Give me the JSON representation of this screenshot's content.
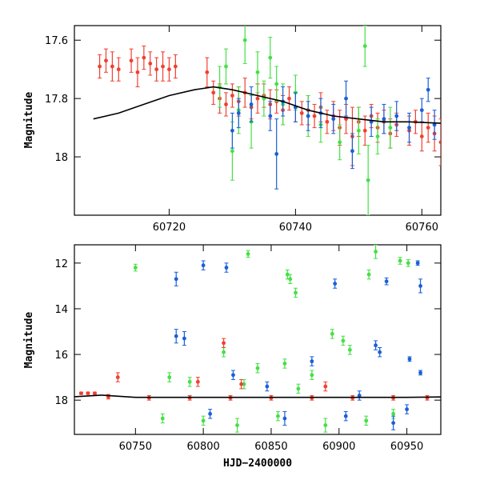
{
  "colors": {
    "red": "#f04030",
    "green": "#44e044",
    "blue": "#1a5fd8",
    "curve": "#000000"
  },
  "chart_data": [
    {
      "id": "top",
      "type": "scatter",
      "title": "",
      "xlabel": "",
      "ylabel": "Magnitude",
      "xlim": [
        60705,
        60763
      ],
      "ylim": [
        18.2,
        17.55
      ],
      "y_inverted": true,
      "x_ticks": [
        60720,
        60740,
        60760
      ],
      "x_tick_labels": [
        "60720",
        "60740",
        "60760"
      ],
      "y_ticks": [
        17.6,
        17.8,
        18
      ],
      "y_tick_labels": [
        "17.6",
        "17.8",
        "18"
      ],
      "model_curve": {
        "name": "model",
        "x": [
          60708,
          60712,
          60716,
          60720,
          60724,
          60727,
          60730,
          60734,
          60738,
          60742,
          60746,
          60750,
          60754,
          60758,
          60763
        ],
        "y": [
          17.87,
          17.85,
          17.82,
          17.79,
          17.77,
          17.76,
          17.77,
          17.79,
          17.81,
          17.84,
          17.86,
          17.87,
          17.88,
          17.88,
          17.885
        ]
      },
      "series": [
        {
          "name": "red",
          "points": [
            [
              60709,
              17.69,
              0.04
            ],
            [
              60710,
              17.67,
              0.04
            ],
            [
              60711,
              17.69,
              0.05
            ],
            [
              60712,
              17.7,
              0.04
            ],
            [
              60714,
              17.67,
              0.04
            ],
            [
              60715,
              17.71,
              0.05
            ],
            [
              60716,
              17.66,
              0.04
            ],
            [
              60717,
              17.68,
              0.04
            ],
            [
              60718,
              17.7,
              0.04
            ],
            [
              60719,
              17.69,
              0.05
            ],
            [
              60720,
              17.7,
              0.04
            ],
            [
              60721,
              17.69,
              0.04
            ],
            [
              60726,
              17.71,
              0.05
            ],
            [
              60727,
              17.78,
              0.04
            ],
            [
              60728,
              17.8,
              0.05
            ],
            [
              60729,
              17.82,
              0.04
            ],
            [
              60730,
              17.79,
              0.04
            ],
            [
              60731,
              17.81,
              0.05
            ],
            [
              60732,
              17.78,
              0.05
            ],
            [
              60733,
              17.83,
              0.04
            ],
            [
              60734,
              17.8,
              0.05
            ],
            [
              60735,
              17.79,
              0.04
            ],
            [
              60736,
              17.82,
              0.05
            ],
            [
              60737,
              17.81,
              0.04
            ],
            [
              60738,
              17.84,
              0.05
            ],
            [
              60739,
              17.8,
              0.04
            ],
            [
              60740,
              17.83,
              0.05
            ],
            [
              60741,
              17.85,
              0.04
            ],
            [
              60742,
              17.84,
              0.05
            ],
            [
              60743,
              17.86,
              0.04
            ],
            [
              60744,
              17.83,
              0.05
            ],
            [
              60745,
              17.88,
              0.04
            ],
            [
              60746,
              17.86,
              0.05
            ],
            [
              60747,
              17.9,
              0.06
            ],
            [
              60748,
              17.87,
              0.05
            ],
            [
              60749,
              17.93,
              0.1
            ],
            [
              60750,
              17.88,
              0.05
            ],
            [
              60751,
              17.91,
              0.05
            ],
            [
              60752,
              17.86,
              0.04
            ],
            [
              60753,
              17.9,
              0.05
            ],
            [
              60754,
              17.88,
              0.04
            ],
            [
              60755,
              17.92,
              0.05
            ],
            [
              60756,
              17.89,
              0.04
            ],
            [
              60758,
              17.91,
              0.05
            ],
            [
              60759,
              17.88,
              0.04
            ],
            [
              60760,
              17.93,
              0.05
            ],
            [
              60761,
              17.9,
              0.05
            ],
            [
              60762,
              17.92,
              0.06
            ],
            [
              60763,
              17.95,
              0.08
            ]
          ]
        },
        {
          "name": "green",
          "points": [
            [
              60728,
              17.76,
              0.07
            ],
            [
              60729,
              17.69,
              0.06
            ],
            [
              60730,
              17.98,
              0.1
            ],
            [
              60731,
              17.84,
              0.08
            ],
            [
              60732,
              17.6,
              0.08
            ],
            [
              60733,
              17.88,
              0.09
            ],
            [
              60734,
              17.71,
              0.07
            ],
            [
              60735,
              17.8,
              0.06
            ],
            [
              60736,
              17.66,
              0.07
            ],
            [
              60737,
              17.75,
              0.06
            ],
            [
              60738,
              17.82,
              0.07
            ],
            [
              60740,
              17.78,
              0.06
            ],
            [
              60742,
              17.86,
              0.07
            ],
            [
              60744,
              17.89,
              0.06
            ],
            [
              60747,
              17.95,
              0.06
            ],
            [
              60750,
              17.91,
              0.08
            ],
            [
              60751,
              17.62,
              0.07
            ],
            [
              60751.5,
              18.08,
              0.12
            ],
            [
              60753,
              17.93,
              0.06
            ],
            [
              60755,
              17.9,
              0.07
            ]
          ]
        },
        {
          "name": "blue",
          "points": [
            [
              60730,
              17.91,
              0.06
            ],
            [
              60731,
              17.85,
              0.05
            ],
            [
              60733,
              17.82,
              0.06
            ],
            [
              60736,
              17.86,
              0.05
            ],
            [
              60737,
              17.99,
              0.12
            ],
            [
              60738,
              17.81,
              0.05
            ],
            [
              60740,
              17.83,
              0.05
            ],
            [
              60742,
              17.86,
              0.05
            ],
            [
              60744,
              17.85,
              0.05
            ],
            [
              60746,
              17.87,
              0.05
            ],
            [
              60748,
              17.8,
              0.06
            ],
            [
              60749,
              17.98,
              0.06
            ],
            [
              60752,
              17.88,
              0.05
            ],
            [
              60754,
              17.87,
              0.05
            ],
            [
              60756,
              17.86,
              0.05
            ],
            [
              60758,
              17.9,
              0.05
            ],
            [
              60760,
              17.84,
              0.04
            ],
            [
              60761,
              17.77,
              0.04
            ],
            [
              60762,
              17.89,
              0.05
            ]
          ]
        }
      ]
    },
    {
      "id": "bottom",
      "type": "scatter",
      "title": "",
      "xlabel": "HJD−2400000",
      "ylabel": "Magnitude",
      "xlim": [
        60705,
        60975
      ],
      "ylim": [
        19.5,
        11.2
      ],
      "y_inverted": true,
      "x_ticks": [
        60750,
        60800,
        60850,
        60900,
        60950
      ],
      "x_tick_labels": [
        "60750",
        "60800",
        "60850",
        "60900",
        "60950"
      ],
      "y_ticks": [
        12,
        14,
        16,
        18
      ],
      "y_tick_labels": [
        "12",
        "14",
        "16",
        "18"
      ],
      "model_curve": {
        "name": "model",
        "x": [
          60705,
          60725,
          60750,
          60800,
          60850,
          60900,
          60950,
          60975
        ],
        "y": [
          17.85,
          17.78,
          17.88,
          17.88,
          17.88,
          17.88,
          17.88,
          17.86
        ]
      },
      "series": [
        {
          "name": "green",
          "points": [
            [
              60750,
              12.2,
              0.15
            ],
            [
              60833,
              11.6,
              0.15
            ],
            [
              60862,
              12.5,
              0.2
            ],
            [
              60864,
              12.7,
              0.2
            ],
            [
              60868,
              13.3,
              0.2
            ],
            [
              60927,
              11.5,
              0.3
            ],
            [
              60922,
              12.5,
              0.2
            ],
            [
              60945,
              11.9,
              0.15
            ],
            [
              60951,
              12.0,
              0.15
            ],
            [
              60895,
              15.1,
              0.2
            ],
            [
              60903,
              15.4,
              0.2
            ],
            [
              60908,
              15.8,
              0.2
            ],
            [
              60815,
              15.9,
              0.2
            ],
            [
              60840,
              16.6,
              0.2
            ],
            [
              60860,
              16.4,
              0.2
            ],
            [
              60880,
              16.9,
              0.2
            ],
            [
              60775,
              17.0,
              0.2
            ],
            [
              60790,
              17.2,
              0.2
            ],
            [
              60830,
              17.3,
              0.2
            ],
            [
              60870,
              17.5,
              0.2
            ],
            [
              60770,
              18.8,
              0.2
            ],
            [
              60800,
              18.9,
              0.2
            ],
            [
              60825,
              19.1,
              0.3
            ],
            [
              60855,
              18.7,
              0.2
            ],
            [
              60890,
              19.1,
              0.3
            ],
            [
              60920,
              18.9,
              0.2
            ],
            [
              60940,
              18.6,
              0.2
            ]
          ]
        },
        {
          "name": "blue",
          "points": [
            [
              60780,
              12.7,
              0.3
            ],
            [
              60800,
              12.1,
              0.2
            ],
            [
              60817,
              12.2,
              0.2
            ],
            [
              60897,
              12.9,
              0.2
            ],
            [
              60935,
              12.8,
              0.15
            ],
            [
              60958,
              12.0,
              0.1
            ],
            [
              60960,
              13.0,
              0.3
            ],
            [
              60780,
              15.2,
              0.3
            ],
            [
              60786,
              15.3,
              0.3
            ],
            [
              60927,
              15.6,
              0.2
            ],
            [
              60930,
              15.9,
              0.2
            ],
            [
              60952,
              16.2,
              0.1
            ],
            [
              60960,
              16.8,
              0.1
            ],
            [
              60822,
              16.9,
              0.2
            ],
            [
              60847,
              17.4,
              0.2
            ],
            [
              60880,
              16.3,
              0.2
            ],
            [
              60915,
              17.8,
              0.2
            ],
            [
              60950,
              18.4,
              0.2
            ],
            [
              60805,
              18.6,
              0.2
            ],
            [
              60860,
              18.8,
              0.3
            ],
            [
              60905,
              18.7,
              0.2
            ],
            [
              60940,
              19.0,
              0.3
            ]
          ]
        },
        {
          "name": "red",
          "points": [
            [
              60710,
              17.7,
              0.05
            ],
            [
              60715,
              17.7,
              0.05
            ],
            [
              60720,
              17.7,
              0.05
            ],
            [
              60737,
              17.0,
              0.2
            ],
            [
              60815,
              15.5,
              0.2
            ],
            [
              60796,
              17.2,
              0.2
            ],
            [
              60828,
              17.3,
              0.2
            ],
            [
              60890,
              17.4,
              0.2
            ],
            [
              60730,
              17.85,
              0.1
            ],
            [
              60760,
              17.9,
              0.1
            ],
            [
              60790,
              17.9,
              0.1
            ],
            [
              60820,
              17.9,
              0.1
            ],
            [
              60850,
              17.9,
              0.1
            ],
            [
              60880,
              17.9,
              0.1
            ],
            [
              60910,
              17.9,
              0.1
            ],
            [
              60940,
              17.9,
              0.1
            ],
            [
              60965,
              17.9,
              0.1
            ]
          ]
        }
      ]
    }
  ]
}
